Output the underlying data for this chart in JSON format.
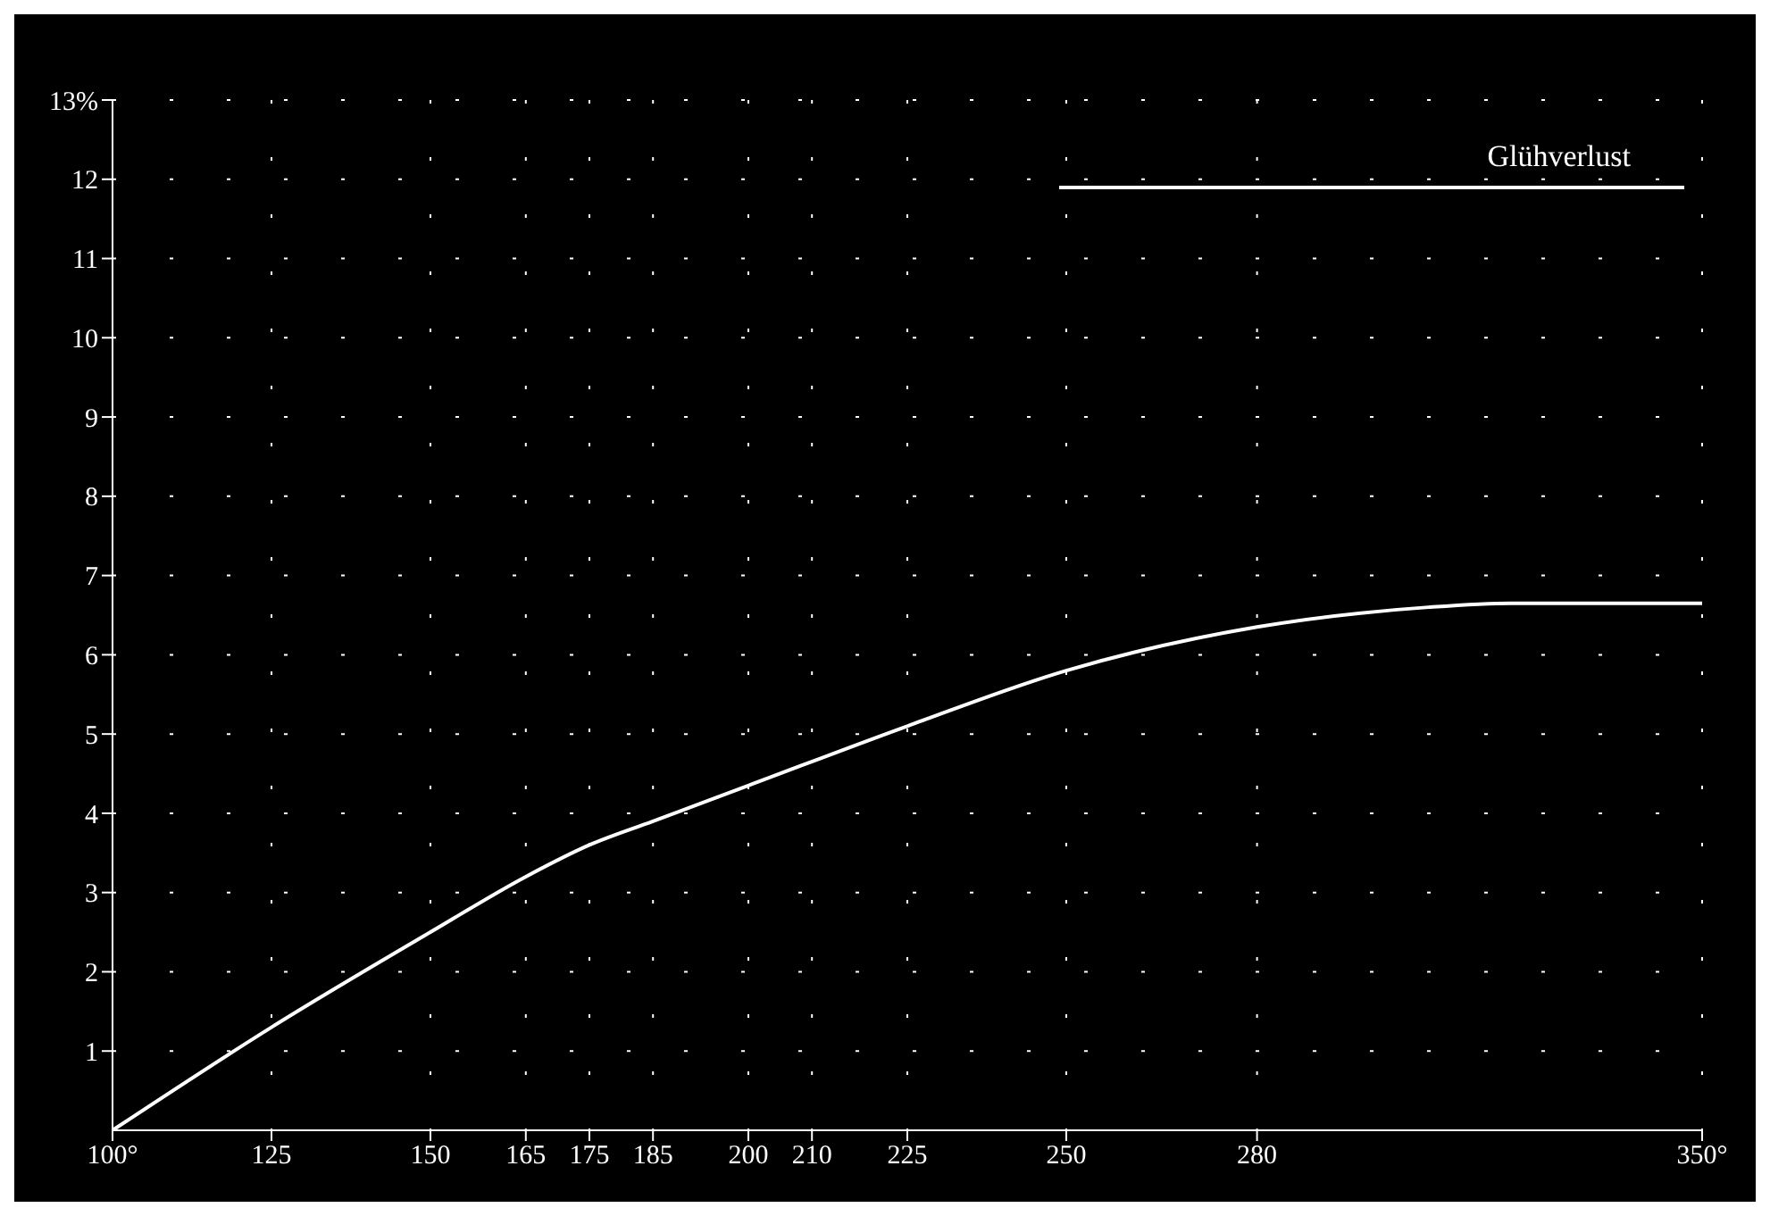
{
  "chart_data": {
    "type": "line",
    "legend": "top right",
    "grid": true,
    "marker": "none",
    "line_style": "solid",
    "xlim": [
      100,
      350
    ],
    "xticks": [
      {
        "value": 100,
        "label": "100°"
      },
      125,
      150,
      165,
      175,
      185,
      200,
      210,
      225,
      250,
      280,
      {
        "value": 350,
        "label": "350°"
      }
    ],
    "ylim": [
      0,
      13
    ],
    "yticks": [
      1,
      2,
      3,
      4,
      5,
      6,
      7,
      8,
      9,
      10,
      11,
      12,
      {
        "value": 13,
        "label": "13%"
      }
    ],
    "series": [
      {
        "name": "Glühverlust",
        "color": "#ffffff",
        "x": [
          100,
          125,
          150,
          165,
          175,
          185,
          200,
          225,
          250,
          280,
          307,
          320,
          350
        ],
        "values": [
          0,
          1.3,
          2.5,
          3.2,
          3.6,
          3.9,
          4.35,
          5.1,
          5.8,
          6.35,
          6.6,
          6.65,
          6.65
        ]
      }
    ]
  }
}
